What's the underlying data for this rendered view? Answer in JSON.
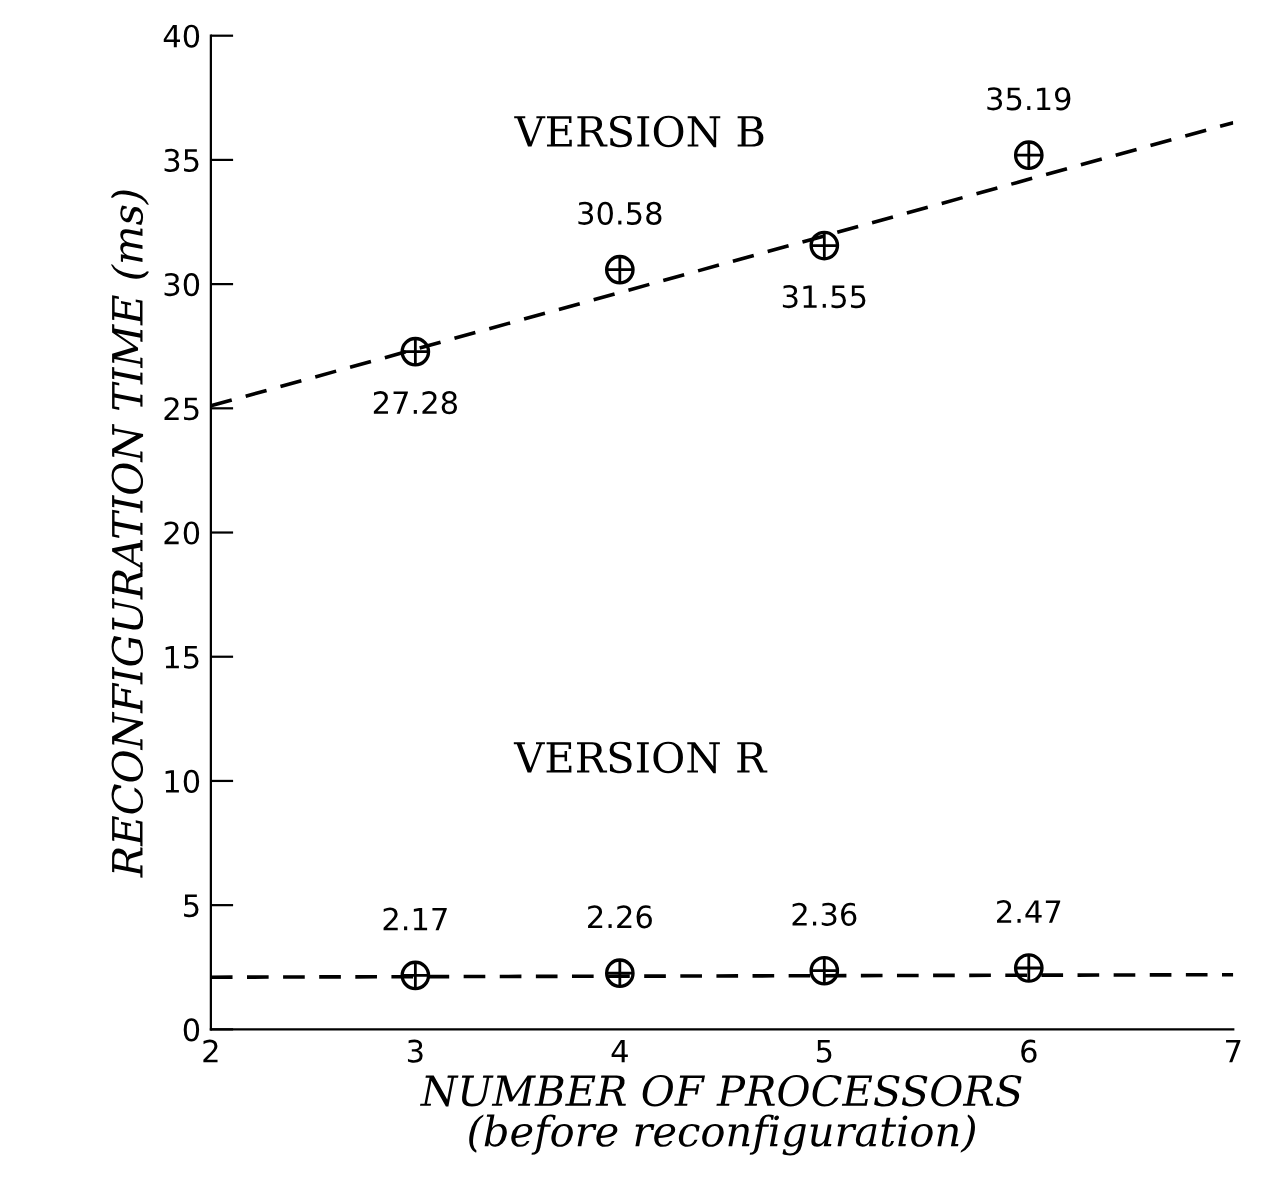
{
  "chart_data": {
    "type": "scatter",
    "xlabel": "NUMBER OF PROCESSORS\n(before reconfiguration)",
    "ylabel": "RECONFIGURATION TIME (ms)",
    "annotations": [
      "VERSION B",
      "VERSION R"
    ],
    "xlim": [
      2,
      7
    ],
    "xticks": [
      2,
      3,
      4,
      5,
      6,
      7
    ],
    "ylim": [
      0,
      40
    ],
    "yticks": [
      0,
      5,
      10,
      15,
      20,
      25,
      30,
      35,
      40
    ],
    "grid": false,
    "marker": "circle",
    "series": [
      {
        "color": "#000000",
        "x": [
          3,
          4,
          5,
          6
        ],
        "values": [
          27.28,
          30.58,
          31.55,
          35.19
        ],
        "value_labels": [
          "27.28",
          "30.58",
          "31.55",
          "35.19"
        ]
      },
      {
        "color": "#000000",
        "x": [
          3,
          4,
          5,
          6
        ],
        "values": [
          2.17,
          2.26,
          2.36,
          2.47
        ],
        "value_labels": [
          "2.17",
          "2.26",
          "2.36",
          "2.47"
        ]
      },
      {
        "type": "line",
        "line_style": "dashed",
        "marker": "none",
        "color": "#000000",
        "x": [
          2,
          7
        ],
        "values": [
          25.1,
          36.5
        ]
      },
      {
        "type": "line",
        "line_style": "dashed",
        "marker": "none",
        "color": "#000000",
        "x": [
          2,
          7
        ],
        "values": [
          2.1,
          2.2
        ]
      }
    ]
  }
}
